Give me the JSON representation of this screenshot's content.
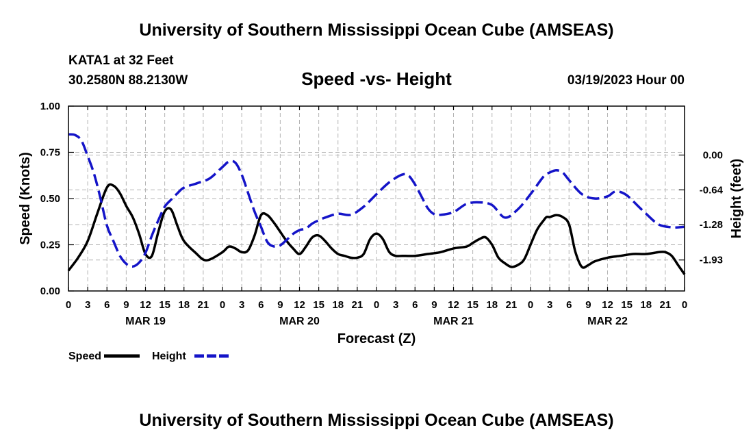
{
  "header": {
    "title": "University of Southern Mississippi Ocean Cube (AMSEAS)",
    "station": "KATA1 at 32 Feet",
    "coords": "30.2580N  88.2130W",
    "chart_title": "Speed -vs- Height",
    "run_date": "03/19/2023 Hour 00"
  },
  "footer": {
    "title": "University of Southern Mississippi Ocean Cube (AMSEAS)"
  },
  "colors": {
    "speed": "#000000",
    "height": "#1414c8",
    "grid": "#b4b4b4"
  },
  "chart_data": {
    "type": "line",
    "title": "Speed -vs- Height",
    "xlabel": "Forecast (Z)",
    "ylabel_left": "Speed (Knots)",
    "ylabel_right": "Height (feet)",
    "x_range_hours": [
      0,
      96
    ],
    "x_tick_labels": [
      "0",
      "3",
      "6",
      "9",
      "12",
      "15",
      "18",
      "21",
      "0",
      "3",
      "6",
      "9",
      "12",
      "15",
      "18",
      "21",
      "0",
      "3",
      "6",
      "9",
      "12",
      "15",
      "18",
      "21",
      "0",
      "3",
      "6",
      "9",
      "12",
      "15",
      "18",
      "21",
      "0"
    ],
    "date_labels": [
      {
        "label": "MAR 19",
        "hour": 12
      },
      {
        "label": "MAR 20",
        "hour": 36
      },
      {
        "label": "MAR 21",
        "hour": 60
      },
      {
        "label": "MAR 22",
        "hour": 84
      }
    ],
    "left_axis": {
      "range": [
        0,
        1
      ],
      "ticks": [
        0,
        0.25,
        0.5,
        0.75,
        1.0
      ],
      "tick_labels": [
        "0.00",
        "0.25",
        "0.50",
        "0.75",
        "1.00"
      ]
    },
    "right_axis": {
      "range": [
        -2.5,
        0.9
      ],
      "ticks": [
        0.0,
        -0.64,
        -1.28,
        -1.93
      ],
      "tick_labels": [
        "0.00",
        "-0.64",
        "-1.28",
        "-1.93"
      ]
    },
    "grid": true,
    "legend": [
      {
        "name": "Speed",
        "style": "solid"
      },
      {
        "name": "Height",
        "style": "dashed"
      }
    ],
    "series": [
      {
        "name": "Speed",
        "axis": "left",
        "style": "solid",
        "x": [
          0,
          1.5,
          3,
          4.5,
          6,
          7,
          8,
          9,
          10,
          11,
          12,
          13,
          14,
          15,
          16,
          17,
          18,
          20,
          21,
          22,
          24,
          25,
          26,
          27,
          28,
          29,
          30,
          31,
          32,
          33,
          34,
          35,
          36,
          37,
          38,
          39,
          40,
          41,
          42,
          43,
          44,
          45,
          46,
          47,
          48,
          49,
          50,
          51,
          52,
          54,
          56,
          58,
          60,
          62,
          63,
          64,
          65,
          66,
          67,
          68,
          69,
          70,
          71,
          72,
          73,
          74,
          74.5,
          75,
          76,
          77,
          78,
          79,
          80,
          81,
          82,
          84,
          86,
          88,
          90,
          92,
          93,
          94,
          95,
          96
        ],
        "values": [
          0.11,
          0.18,
          0.27,
          0.42,
          0.56,
          0.57,
          0.53,
          0.46,
          0.4,
          0.31,
          0.2,
          0.19,
          0.32,
          0.43,
          0.44,
          0.35,
          0.27,
          0.2,
          0.17,
          0.17,
          0.21,
          0.24,
          0.23,
          0.21,
          0.22,
          0.3,
          0.41,
          0.41,
          0.37,
          0.32,
          0.27,
          0.23,
          0.2,
          0.24,
          0.29,
          0.3,
          0.27,
          0.23,
          0.2,
          0.19,
          0.18,
          0.18,
          0.2,
          0.28,
          0.31,
          0.28,
          0.21,
          0.19,
          0.19,
          0.19,
          0.2,
          0.21,
          0.23,
          0.24,
          0.26,
          0.28,
          0.29,
          0.25,
          0.18,
          0.15,
          0.13,
          0.14,
          0.17,
          0.25,
          0.33,
          0.38,
          0.4,
          0.4,
          0.41,
          0.4,
          0.36,
          0.21,
          0.13,
          0.14,
          0.16,
          0.18,
          0.19,
          0.2,
          0.2,
          0.21,
          0.21,
          0.19,
          0.14,
          0.09
        ]
      },
      {
        "name": "Height",
        "axis": "right",
        "style": "dashed",
        "x": [
          0,
          1,
          2,
          3,
          4,
          5,
          6,
          7,
          8,
          9,
          10,
          11,
          12,
          13,
          14,
          15,
          16,
          17,
          18,
          20,
          22,
          24,
          25,
          26,
          27,
          28,
          29,
          30,
          31,
          32,
          33,
          34,
          35,
          36,
          37,
          38,
          39,
          40,
          42,
          44,
          46,
          48,
          50,
          52,
          53,
          54,
          55,
          56,
          57,
          58,
          60,
          62,
          64,
          66,
          68,
          70,
          72,
          74,
          75,
          76,
          77,
          78,
          80,
          82,
          84,
          85,
          86,
          87,
          88,
          90,
          92,
          94,
          95,
          96
        ],
        "values": [
          0.38,
          0.37,
          0.27,
          -0.02,
          -0.35,
          -0.8,
          -1.3,
          -1.58,
          -1.85,
          -2.0,
          -2.05,
          -1.98,
          -1.8,
          -1.48,
          -1.2,
          -0.95,
          -0.82,
          -0.7,
          -0.6,
          -0.52,
          -0.43,
          -0.22,
          -0.12,
          -0.14,
          -0.36,
          -0.7,
          -1.04,
          -1.32,
          -1.6,
          -1.68,
          -1.66,
          -1.56,
          -1.45,
          -1.38,
          -1.35,
          -1.26,
          -1.2,
          -1.15,
          -1.08,
          -1.1,
          -0.95,
          -0.72,
          -0.5,
          -0.36,
          -0.38,
          -0.54,
          -0.76,
          -0.98,
          -1.09,
          -1.1,
          -1.05,
          -0.9,
          -0.87,
          -0.92,
          -1.15,
          -1.0,
          -0.72,
          -0.4,
          -0.32,
          -0.28,
          -0.32,
          -0.46,
          -0.72,
          -0.8,
          -0.76,
          -0.68,
          -0.68,
          -0.74,
          -0.85,
          -1.08,
          -1.28,
          -1.33,
          -1.33,
          -1.32
        ]
      }
    ]
  }
}
